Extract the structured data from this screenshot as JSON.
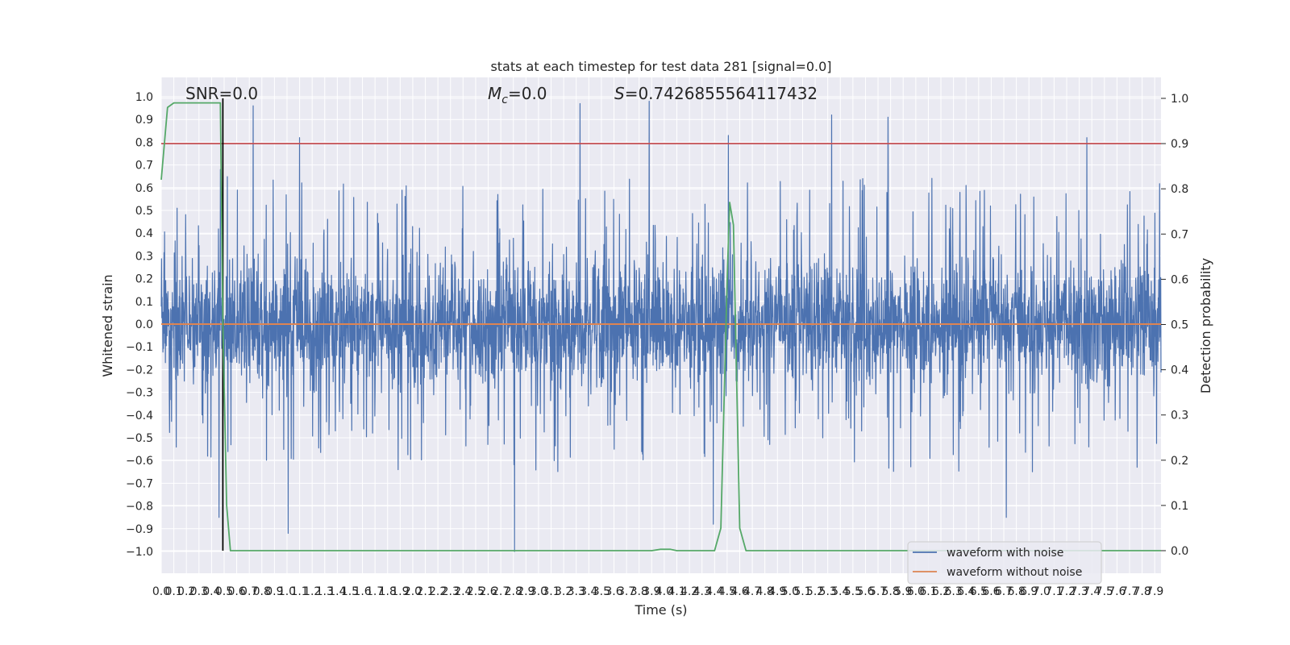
{
  "chart_data": {
    "type": "line",
    "title": "stats at each timestep for test data 281 [signal=0.0]",
    "xlabel": "Time (s)",
    "ylabel": "Whitened strain",
    "ylabel_right": "Detection probability",
    "xlim": [
      0.0,
      7.95
    ],
    "ylim": [
      -1.1,
      1.1
    ],
    "ylim_right": [
      -0.05,
      1.05
    ],
    "grid": true,
    "background": "#eaeaf2",
    "xticks": [
      "0.0",
      "0.1",
      "0.2",
      "0.3",
      "0.4",
      "0.5",
      "0.6",
      "0.7",
      "0.8",
      "0.9",
      "1.0",
      "1.1",
      "1.2",
      "1.3",
      "1.4",
      "1.5",
      "1.6",
      "1.7",
      "1.8",
      "1.9",
      "2.0",
      "2.1",
      "2.2",
      "2.3",
      "2.4",
      "2.5",
      "2.6",
      "2.7",
      "2.8",
      "2.9",
      "3.0",
      "3.1",
      "3.2",
      "3.3",
      "3.4",
      "3.5",
      "3.6",
      "3.7",
      "3.8",
      "3.9",
      "4.0",
      "4.1",
      "4.2",
      "4.3",
      "4.4",
      "4.5",
      "4.6",
      "4.7",
      "4.8",
      "4.9",
      "5.0",
      "5.1",
      "5.2",
      "5.3",
      "5.4",
      "5.5",
      "5.6",
      "5.7",
      "5.8",
      "5.9",
      "6.0",
      "6.1",
      "6.2",
      "6.3",
      "6.4",
      "6.5",
      "6.6",
      "6.7",
      "6.8",
      "6.9",
      "7.0",
      "7.1",
      "7.2",
      "7.3",
      "7.4",
      "7.5",
      "7.6",
      "7.7",
      "7.8",
      "7.9"
    ],
    "yticks_left": [
      "1.0",
      "0.9",
      "0.8",
      "0.7",
      "0.6",
      "0.5",
      "0.4",
      "0.3",
      "0.2",
      "0.1",
      "0.0",
      "−0.1",
      "−0.2",
      "−0.3",
      "−0.4",
      "−0.5",
      "−0.6",
      "−0.7",
      "−0.8",
      "−0.9",
      "−1.0"
    ],
    "yticks_right": [
      "1.0",
      "0.9",
      "0.8",
      "0.7",
      "0.6",
      "0.5",
      "0.4",
      "0.3",
      "0.2",
      "0.1",
      "0.0"
    ],
    "annotations": {
      "snr": "SNR=0.0",
      "mc_prefix": "M",
      "mc_sub": "c",
      "mc_suffix": "=0.0",
      "s_prefix": "S",
      "s_suffix": "=0.7426855564117432"
    },
    "legend": {
      "placement": "lower right",
      "entries": [
        {
          "label": "waveform with noise",
          "color": "#4c72b0"
        },
        {
          "label": "waveform without noise",
          "color": "#dd8452"
        }
      ]
    },
    "series": [
      {
        "name": "waveform with noise",
        "color": "#4c72b0",
        "axis": "left",
        "style": "dense noise trace",
        "band_upper_typical": 0.4,
        "band_lower_typical": -0.4,
        "peaks": [
          {
            "x": 0.47,
            "y": 0.68
          },
          {
            "x": 0.73,
            "y": 0.96
          },
          {
            "x": 1.1,
            "y": 0.82
          },
          {
            "x": 3.33,
            "y": 0.97
          },
          {
            "x": 3.88,
            "y": 0.98
          },
          {
            "x": 4.51,
            "y": 0.83
          },
          {
            "x": 5.33,
            "y": 0.92
          },
          {
            "x": 5.78,
            "y": 0.91
          },
          {
            "x": 7.36,
            "y": 0.82
          }
        ],
        "troughs": [
          {
            "x": 0.46,
            "y": -0.85
          },
          {
            "x": 1.01,
            "y": -0.92
          },
          {
            "x": 2.81,
            "y": -1.0
          },
          {
            "x": 4.39,
            "y": -0.88
          },
          {
            "x": 6.72,
            "y": -0.85
          }
        ]
      },
      {
        "name": "waveform without noise",
        "color": "#dd8452",
        "axis": "left",
        "x": [
          0.0,
          7.95
        ],
        "y": [
          0.0,
          0.0
        ]
      },
      {
        "name": "detection probability",
        "color": "#55a868",
        "axis": "right",
        "x": [
          0.0,
          0.05,
          0.1,
          0.15,
          0.2,
          0.3,
          0.4,
          0.47,
          0.49,
          0.52,
          0.55,
          0.6,
          1.0,
          2.0,
          3.0,
          3.9,
          3.97,
          4.05,
          4.1,
          4.2,
          4.4,
          4.45,
          4.5,
          4.52,
          4.55,
          4.6,
          4.65,
          4.7,
          5.0,
          6.0,
          7.0,
          7.95
        ],
        "y": [
          0.82,
          0.98,
          0.99,
          0.99,
          0.99,
          0.99,
          0.99,
          0.99,
          0.5,
          0.1,
          0.0,
          0.0,
          0.0,
          0.0,
          0.0,
          0.0,
          0.003,
          0.003,
          0.0,
          0.0,
          0.0,
          0.05,
          0.6,
          0.77,
          0.72,
          0.05,
          0.0,
          0.0,
          0.0,
          0.0,
          0.0,
          0.0
        ]
      }
    ],
    "reference_lines": [
      {
        "orientation": "horizontal",
        "axis": "right",
        "value": 0.9,
        "color": "#c44e52"
      },
      {
        "orientation": "vertical",
        "value": 0.49,
        "y_from_right": 0.0,
        "y_to_right": 1.0,
        "color": "#000000"
      }
    ]
  }
}
